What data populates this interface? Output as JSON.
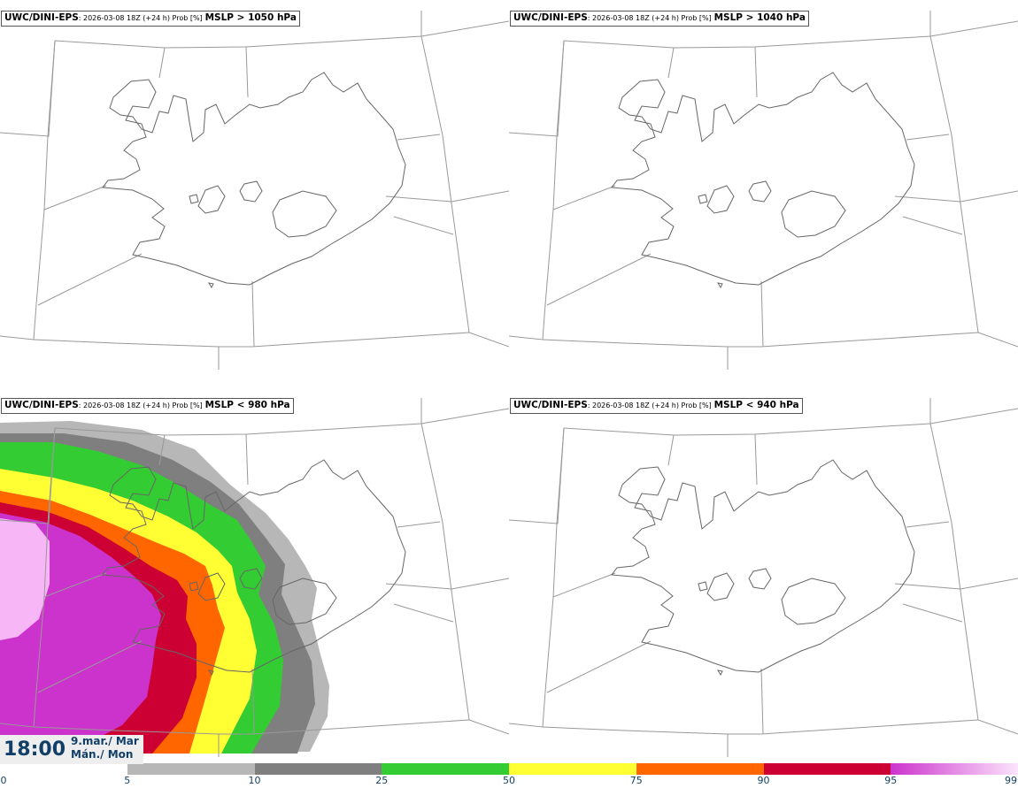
{
  "panels": [
    {
      "model": "UWC/DINI-EPS",
      "meta": ": 2026-03-08 18Z (+24 h) Prob [%]",
      "field": "MSLP > 1050 hPa"
    },
    {
      "model": "UWC/DINI-EPS",
      "meta": ": 2026-03-08 18Z (+24 h) Prob [%]",
      "field": "MSLP > 1040 hPa"
    },
    {
      "model": "UWC/DINI-EPS",
      "meta": ": 2026-03-08 18Z (+24 h) Prob [%]",
      "field": "MSLP < 980 hPa"
    },
    {
      "model": "UWC/DINI-EPS",
      "meta": ": 2026-03-08 18Z (+24 h) Prob [%]",
      "field": "MSLP < 940 hPa"
    }
  ],
  "valid_time": {
    "time": "18:00",
    "date_line1": "9.mar./ Mar",
    "date_line2": "Mán./ Mon"
  },
  "colorbar": {
    "ticks": [
      "0",
      "5",
      "10",
      "25",
      "50",
      "75",
      "90",
      "95",
      "99"
    ],
    "colors": [
      "#ffffff",
      "#b7b7b7",
      "#7f7f7f",
      "#33cc33",
      "#ffff33",
      "#ff6600",
      "#cc0033",
      "#cc33cc",
      "#f7b7f7"
    ]
  }
}
